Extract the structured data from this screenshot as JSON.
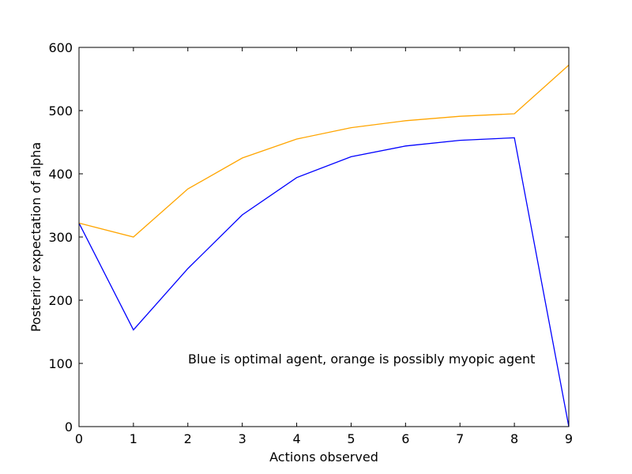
{
  "chart_data": {
    "type": "line",
    "title": "",
    "xlabel": "Actions observed",
    "ylabel": "Posterior expectation of alpha",
    "xlim": [
      0,
      9
    ],
    "ylim": [
      0,
      600
    ],
    "x_ticks": [
      0,
      1,
      2,
      3,
      4,
      5,
      6,
      7,
      8,
      9
    ],
    "y_ticks": [
      0,
      100,
      200,
      300,
      400,
      500,
      600
    ],
    "grid": false,
    "x": [
      0,
      1,
      2,
      3,
      4,
      5,
      6,
      7,
      8,
      9
    ],
    "series": [
      {
        "color": "#0000ff",
        "values": [
          322,
          153,
          250,
          335,
          394,
          427,
          444,
          453,
          457,
          0
        ]
      },
      {
        "color": "#ffa500",
        "values": [
          322,
          300,
          376,
          425,
          455,
          473,
          484,
          491,
          495,
          572
        ]
      }
    ],
    "annotation": "Blue is optimal agent, orange is possibly myopic agent"
  }
}
